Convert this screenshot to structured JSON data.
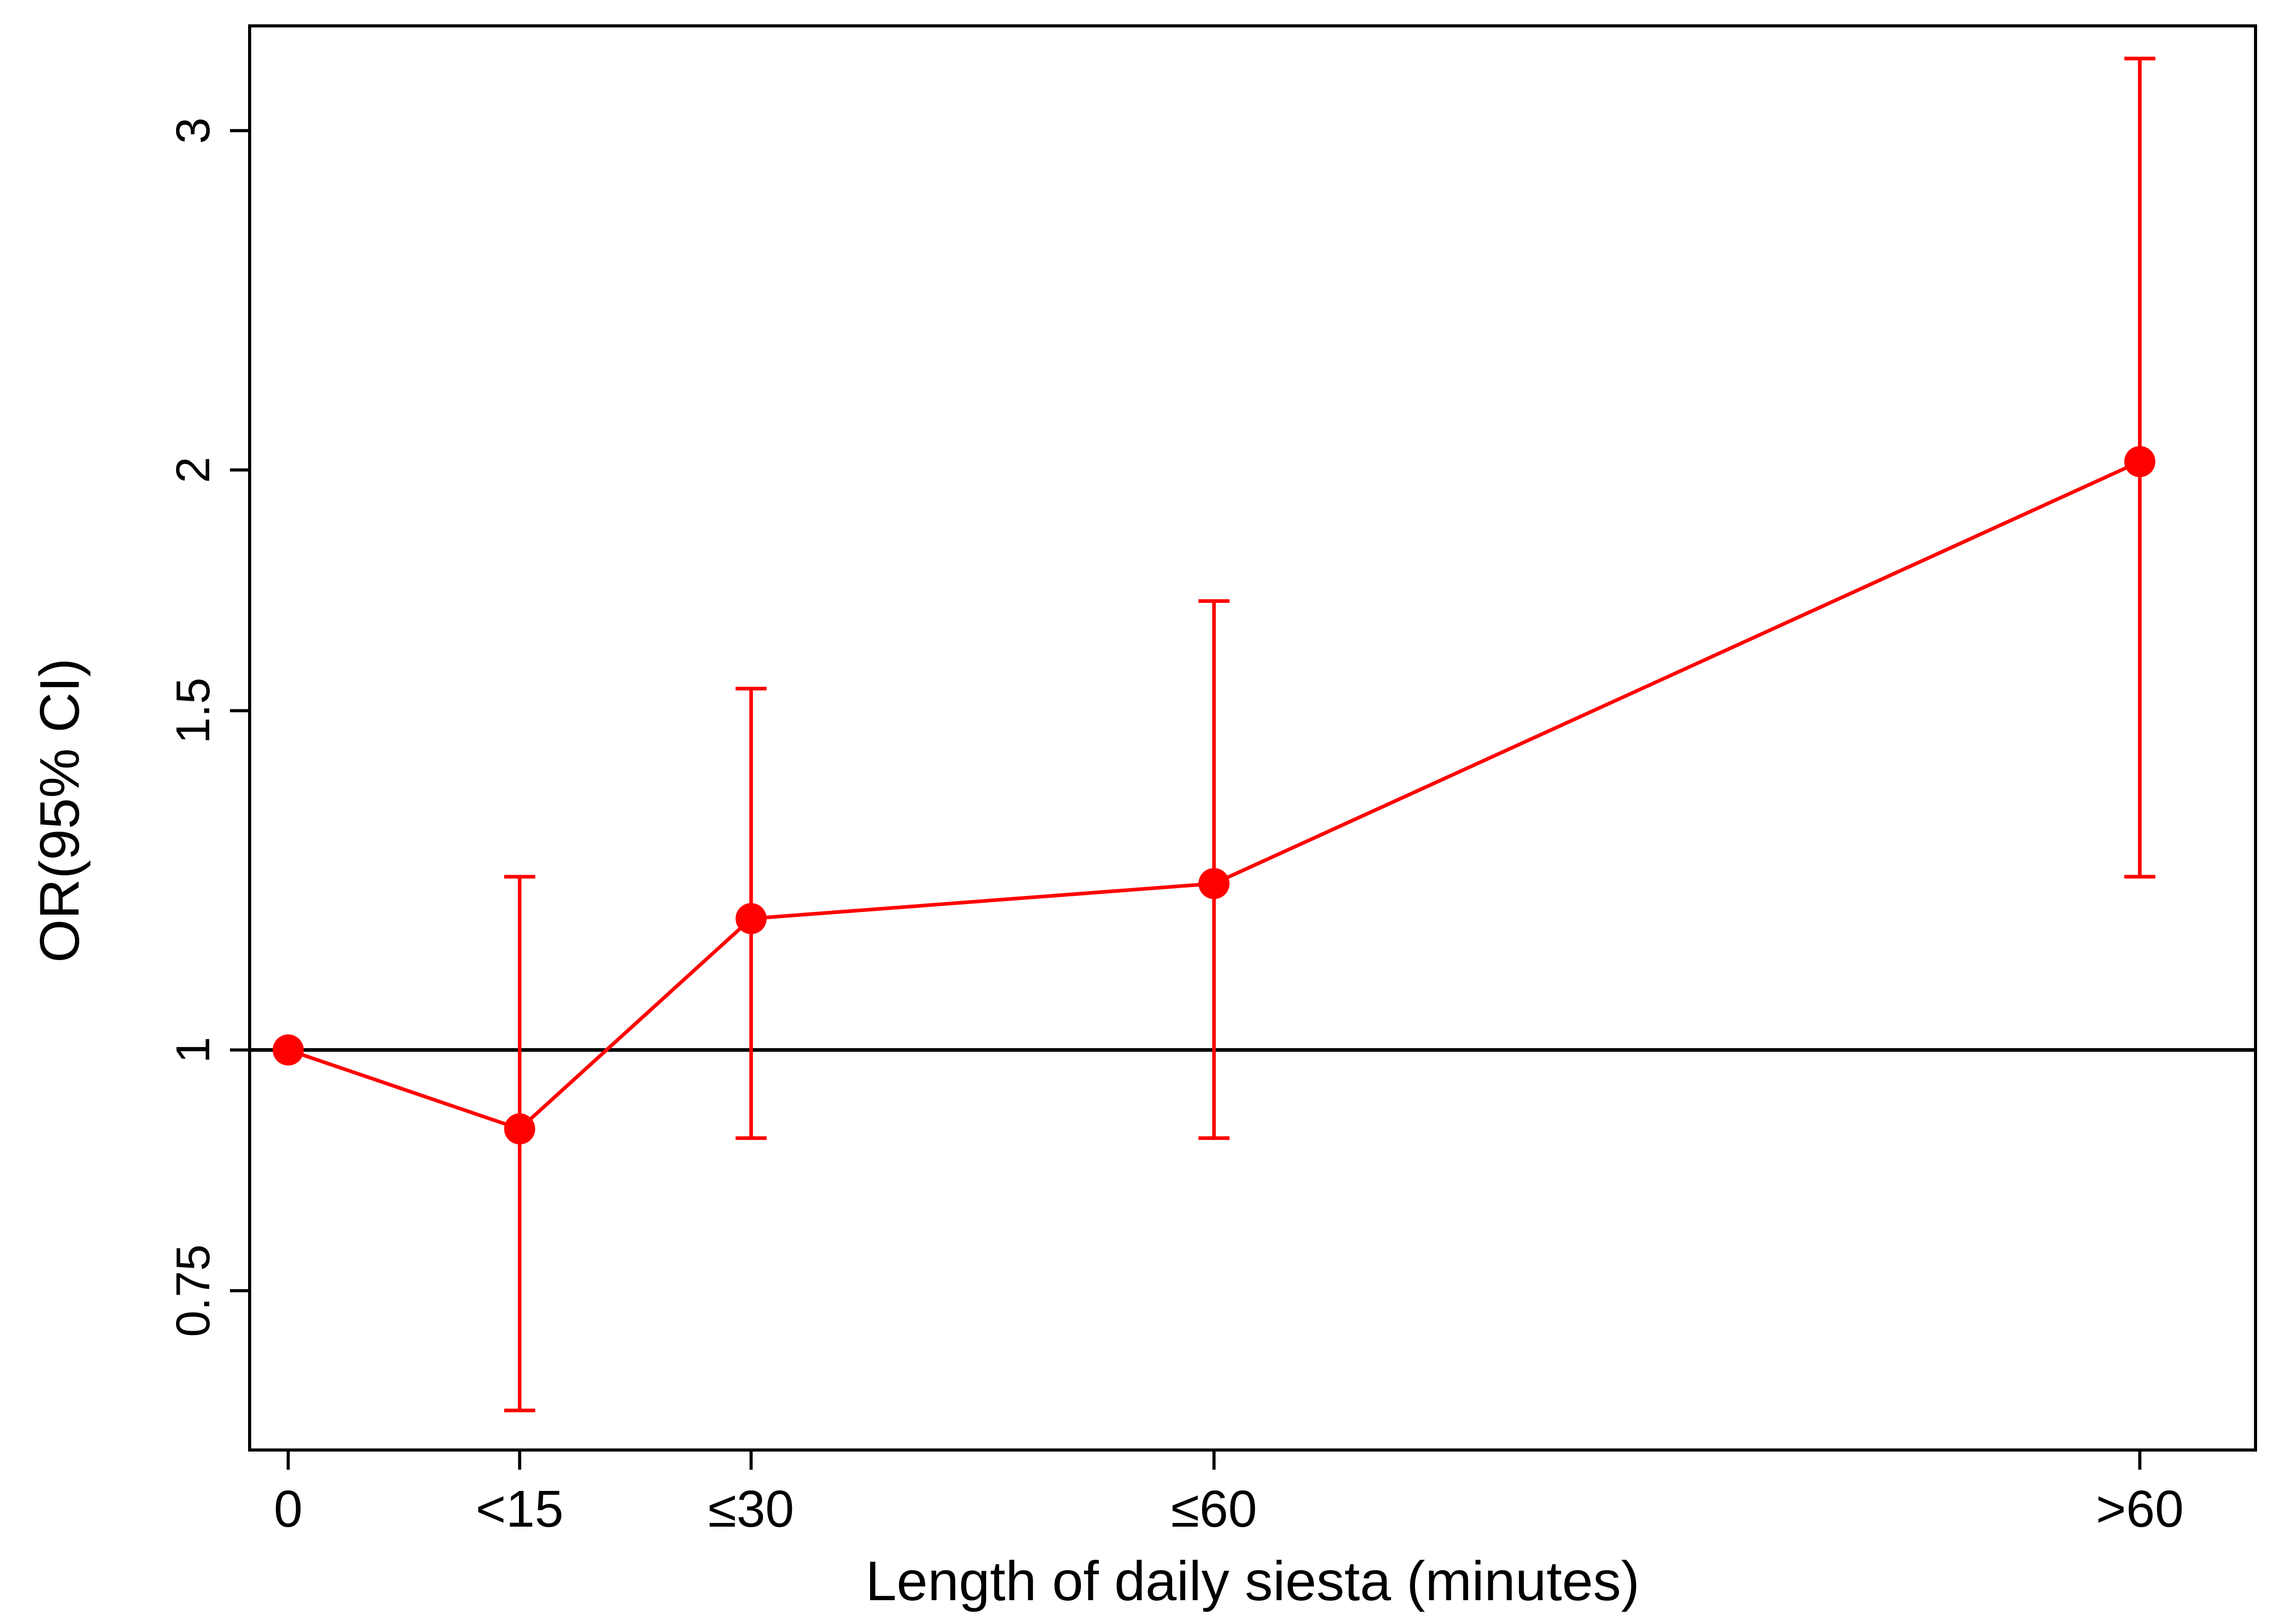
{
  "chart_data": {
    "type": "line",
    "xlabel": "Length of daily siesta (minutes)",
    "ylabel": "OR(95% CI)",
    "y_scale": "log",
    "ylim": [
      0.62,
      3.4
    ],
    "grid": false,
    "legend": "none",
    "categories": [
      "0",
      "<15",
      "≤30",
      "≤60",
      ">60"
    ],
    "x": [
      0,
      15,
      30,
      60,
      120
    ],
    "xlim": [
      -2.5,
      127.5
    ],
    "y_ticks": [
      0.75,
      1,
      1.5,
      2,
      3
    ],
    "y_tick_labels": [
      "0.75",
      "1",
      "1.5",
      "2",
      "3"
    ],
    "reference_line": 1,
    "series": [
      {
        "or": [
          1.0,
          0.91,
          1.17,
          1.22,
          2.02
        ],
        "ci_lower": [
          null,
          0.65,
          0.9,
          0.9,
          1.23
        ],
        "ci_upper": [
          null,
          1.23,
          1.54,
          1.71,
          3.27
        ],
        "color": "#ff0000"
      }
    ],
    "colors": {
      "series": "#ff0000",
      "reference": "#000000",
      "frame": "#000000"
    }
  }
}
